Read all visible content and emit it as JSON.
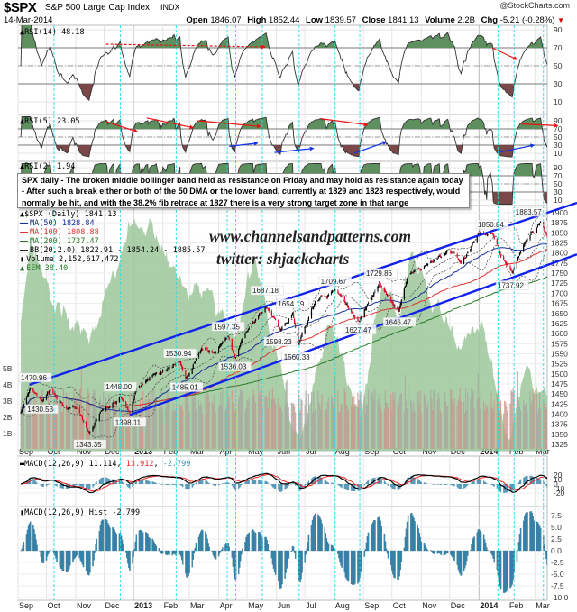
{
  "header": {
    "symbol": "$SPX",
    "name": "S&P 500 Large Cap Index",
    "exchange": "INDX",
    "date": "14-Mar-2014",
    "provider": "@StockCharts.com",
    "quote": {
      "open_label": "Open",
      "open": "1846.07",
      "high_label": "High",
      "high": "1852.44",
      "low_label": "Low",
      "low": "1839.57",
      "close_label": "Close",
      "close": "1841.13",
      "volume_label": "Volume",
      "volume": "2.2B",
      "chg_label": "Chg",
      "chg": "-5.21 (-0.28%)",
      "chg_icon": "down-triangle-icon"
    }
  },
  "annotation": {
    "lines": [
      "SPX daily - The broken middle bollinger band held as resistance on Friday and may hold as resistance again today",
      "- After such a break either or both of the 50 DMA or the lower band, currently at 1829 and 1823 respectively, would",
      "normally be hit, and with the 38.2% fib retrace at 1827 there is a very strong target zone in that range"
    ]
  },
  "branding": {
    "site": "www.channelsandpatterns.com",
    "twitter": "twitter: shjackcharts"
  },
  "colors": {
    "candle_up": "#000000",
    "candle_down": "#dd0022",
    "ma50": "#1a2e99",
    "ma100": "#dd3333",
    "ma200": "#2a7a2a",
    "bb": "#444444",
    "channel": "#1122ee",
    "eem_area": "#9cc79a",
    "volume_down": "#c9968c",
    "volume_up": "#a8a8a0",
    "macd": "#000000",
    "signal": "#ee2222",
    "hist": "#3a87ad",
    "rsi_overbought_fill": "#5e8f5e",
    "rsi_oversold_fill": "#7a4848",
    "highlight_vline": "#22ddee",
    "annotation_red": "#ee1111",
    "annotation_blue": "#1133ee"
  },
  "chart_data": {
    "type": "stock-chart",
    "x_axis": {
      "range": [
        "2012-09-04",
        "2014-03-14"
      ],
      "ticks": [
        {
          "date": "2012-09-01",
          "label": "Sep"
        },
        {
          "date": "2012-10-01",
          "label": "Oct"
        },
        {
          "date": "2012-11-01",
          "label": "Nov"
        },
        {
          "date": "2012-12-01",
          "label": "Dec"
        },
        {
          "date": "2013-01-01",
          "label": "2013",
          "bold": true
        },
        {
          "date": "2013-02-01",
          "label": "Feb"
        },
        {
          "date": "2013-03-01",
          "label": "Mar"
        },
        {
          "date": "2013-04-01",
          "label": "Apr"
        },
        {
          "date": "2013-05-01",
          "label": "May"
        },
        {
          "date": "2013-06-01",
          "label": "Jun"
        },
        {
          "date": "2013-07-01",
          "label": "Jul"
        },
        {
          "date": "2013-08-01",
          "label": "Aug"
        },
        {
          "date": "2013-09-01",
          "label": "Sep"
        },
        {
          "date": "2013-10-01",
          "label": "Oct"
        },
        {
          "date": "2013-11-01",
          "label": "Nov"
        },
        {
          "date": "2013-12-01",
          "label": "Dec"
        },
        {
          "date": "2014-01-01",
          "label": "2014",
          "bold": true
        },
        {
          "date": "2014-02-01",
          "label": "Feb"
        },
        {
          "date": "2014-03-01",
          "label": "Mar"
        }
      ],
      "highlight_dates": [
        "2012-10-09",
        "2012-12-18",
        "2013-02-15",
        "2013-04-10",
        "2013-04-19",
        "2013-05-17",
        "2013-06-25",
        "2013-08-02",
        "2013-08-28",
        "2014-01-21",
        "2014-02-07",
        "2014-03-10"
      ]
    },
    "rsi14": {
      "legend": "RSI(14) 48.18",
      "period": 14,
      "ticks": [
        90,
        70,
        50,
        30,
        10
      ],
      "levels": [
        70,
        30
      ],
      "divergence_arrows": [
        {
          "color": "red",
          "style": "dashed",
          "from": [
            "2012-12-03",
            74
          ],
          "to": [
            "2013-05-20",
            71
          ]
        },
        {
          "color": "red",
          "style": "solid",
          "from": [
            "2014-01-15",
            70
          ],
          "to": [
            "2014-02-10",
            57
          ]
        }
      ]
    },
    "rsi5": {
      "legend": "RSI(5) 23.05",
      "period": 5,
      "ticks": [
        90,
        70,
        50,
        30,
        10
      ],
      "levels": [
        70,
        30
      ],
      "divergence_arrows": [
        {
          "color": "red",
          "from": [
            "2012-12-03",
            88
          ],
          "to": [
            "2013-01-05",
            63
          ]
        },
        {
          "color": "red",
          "from": [
            "2013-01-15",
            97
          ],
          "to": [
            "2013-03-05",
            73
          ]
        },
        {
          "color": "red",
          "from": [
            "2013-03-10",
            90
          ],
          "to": [
            "2013-05-15",
            76
          ]
        },
        {
          "color": "red",
          "from": [
            "2013-07-18",
            95
          ],
          "to": [
            "2013-09-05",
            80
          ]
        },
        {
          "color": "red",
          "from": [
            "2014-02-15",
            82
          ],
          "to": [
            "2014-03-25",
            78
          ]
        },
        {
          "color": "blue",
          "from": [
            "2013-04-12",
            27
          ],
          "to": [
            "2013-05-12",
            35
          ]
        },
        {
          "color": "blue",
          "from": [
            "2013-05-30",
            12
          ],
          "to": [
            "2013-07-10",
            22
          ]
        },
        {
          "color": "blue",
          "from": [
            "2013-08-22",
            10
          ],
          "to": [
            "2013-09-25",
            38
          ]
        },
        {
          "color": "blue",
          "from": [
            "2014-01-22",
            12
          ],
          "to": [
            "2014-02-28",
            30
          ]
        }
      ]
    },
    "rsi2": {
      "legend": "RSI(2) 1.94",
      "period": 2,
      "ticks": [
        90,
        70,
        50,
        30,
        10
      ],
      "levels": [
        70,
        30
      ]
    },
    "price": {
      "legend": {
        "main": "$SPX (Daily) 1841.13",
        "ma50": "MA(50) 1828.84",
        "ma100": "MA(100) 1808.88",
        "ma200": "MA(200) 1737.47",
        "bb": "BB(20,2.0) 1822.91 - 1854.24 - 1885.57",
        "volume": "Volume 2,152,617,472",
        "eem": "EEM 38.40"
      },
      "y_ticks": [
        1900,
        1875,
        1850,
        1825,
        1800,
        1775,
        1750,
        1725,
        1700,
        1675,
        1650,
        1625,
        1600,
        1575,
        1550,
        1525,
        1500,
        1475,
        1450,
        1425,
        1400,
        1375,
        1350,
        1325
      ],
      "volume_ticks": [
        "5B",
        "4B",
        "3B",
        "2B",
        "1B"
      ],
      "close_path": [
        [
          "2012-09-04",
          1405
        ],
        [
          "2012-09-14",
          1466
        ],
        [
          "2012-09-26",
          1433
        ],
        [
          "2012-10-05",
          1461
        ],
        [
          "2012-10-23",
          1413
        ],
        [
          "2012-11-02",
          1414
        ],
        [
          "2012-11-15",
          1353
        ],
        [
          "2012-11-28",
          1409
        ],
        [
          "2012-12-07",
          1418
        ],
        [
          "2012-12-18",
          1446
        ],
        [
          "2012-12-28",
          1402
        ],
        [
          "2013-01-04",
          1466
        ],
        [
          "2013-01-25",
          1503
        ],
        [
          "2013-02-19",
          1530
        ],
        [
          "2013-02-25",
          1488
        ],
        [
          "2013-03-14",
          1563
        ],
        [
          "2013-03-26",
          1552
        ],
        [
          "2013-04-02",
          1570
        ],
        [
          "2013-04-11",
          1593
        ],
        [
          "2013-04-18",
          1541
        ],
        [
          "2013-05-03",
          1614
        ],
        [
          "2013-05-21",
          1669
        ],
        [
          "2013-06-05",
          1608
        ],
        [
          "2013-06-18",
          1651
        ],
        [
          "2013-06-24",
          1573
        ],
        [
          "2013-07-12",
          1680
        ],
        [
          "2013-08-02",
          1709
        ],
        [
          "2013-08-27",
          1630
        ],
        [
          "2013-09-18",
          1725
        ],
        [
          "2013-10-08",
          1656
        ],
        [
          "2013-10-18",
          1745
        ],
        [
          "2013-11-06",
          1770
        ],
        [
          "2013-11-29",
          1806
        ],
        [
          "2013-12-13",
          1775
        ],
        [
          "2013-12-31",
          1848
        ],
        [
          "2014-01-15",
          1848
        ],
        [
          "2014-01-24",
          1790
        ],
        [
          "2014-02-05",
          1751
        ],
        [
          "2014-02-19",
          1828
        ],
        [
          "2014-03-07",
          1878
        ],
        [
          "2014-03-14",
          1841.13
        ]
      ],
      "eem_path": [
        [
          "2012-09-04",
          41.2
        ],
        [
          "2012-09-14",
          44.0
        ],
        [
          "2012-10-05",
          42.3
        ],
        [
          "2012-10-23",
          41.5
        ],
        [
          "2012-11-15",
          40.5
        ],
        [
          "2012-12-03",
          42.5
        ],
        [
          "2013-01-03",
          45.2
        ],
        [
          "2013-01-25",
          44.5
        ],
        [
          "2013-02-25",
          42.3
        ],
        [
          "2013-03-14",
          42.5
        ],
        [
          "2013-04-18",
          40.7
        ],
        [
          "2013-05-08",
          43.5
        ],
        [
          "2013-06-24",
          36.6
        ],
        [
          "2013-07-23",
          40.8
        ],
        [
          "2013-08-05",
          40.5
        ],
        [
          "2013-08-28",
          37.6
        ],
        [
          "2013-09-18",
          42.3
        ],
        [
          "2013-10-08",
          41.5
        ],
        [
          "2013-10-22",
          43.8
        ],
        [
          "2013-11-06",
          42.5
        ],
        [
          "2013-12-13",
          40.4
        ],
        [
          "2014-01-03",
          41.2
        ],
        [
          "2014-02-03",
          37.0
        ],
        [
          "2014-02-20",
          39.5
        ],
        [
          "2014-03-14",
          38.4
        ]
      ],
      "swing_labels": [
        {
          "date": "2012-09-14",
          "value": 1470.96,
          "pos": "above"
        },
        {
          "date": "2012-09-26",
          "value": 1430.53,
          "pos": "below"
        },
        {
          "date": "2012-11-16",
          "value": 1343.35,
          "pos": "below"
        },
        {
          "date": "2012-12-18",
          "value": 1448.0,
          "pos": "above"
        },
        {
          "date": "2012-12-28",
          "value": 1398.11,
          "pos": "below"
        },
        {
          "date": "2013-02-19",
          "value": 1530.94,
          "pos": "above"
        },
        {
          "date": "2013-02-26",
          "value": 1485.01,
          "pos": "below"
        },
        {
          "date": "2013-04-11",
          "value": 1597.35,
          "pos": "above"
        },
        {
          "date": "2013-04-18",
          "value": 1536.03,
          "pos": "below"
        },
        {
          "date": "2013-05-22",
          "value": 1687.18,
          "pos": "above"
        },
        {
          "date": "2013-06-18",
          "value": 1654.19,
          "pos": "above"
        },
        {
          "date": "2013-06-05",
          "value": 1598.23,
          "pos": "below"
        },
        {
          "date": "2013-06-24",
          "value": 1560.33,
          "pos": "below"
        },
        {
          "date": "2013-08-02",
          "value": 1709.67,
          "pos": "above"
        },
        {
          "date": "2013-08-28",
          "value": 1627.47,
          "pos": "below"
        },
        {
          "date": "2013-09-19",
          "value": 1729.86,
          "pos": "above"
        },
        {
          "date": "2013-10-09",
          "value": 1646.47,
          "pos": "below"
        },
        {
          "date": "2014-01-15",
          "value": 1850.84,
          "pos": "above"
        },
        {
          "date": "2014-02-05",
          "value": 1737.92,
          "pos": "below"
        },
        {
          "date": "2014-03-07",
          "value": 1883.57,
          "pos": "above"
        }
      ],
      "channel_lines": [
        {
          "name": "upper",
          "from": [
            "2012-09-13",
            1473
          ],
          "to": [
            "2014-03-14",
            1900
          ]
        },
        {
          "name": "lower",
          "from": [
            "2012-12-28",
            1398
          ],
          "to": [
            "2014-03-14",
            1770
          ]
        }
      ]
    },
    "macd": {
      "legend_prefix": "MACD(12,26,9) 11.114",
      "legend_signal": "13.912",
      "legend_hist": "-2.799",
      "params": [
        12,
        26,
        9
      ],
      "ticks": [
        20,
        10,
        0,
        -10,
        -20
      ]
    },
    "macd_hist": {
      "legend": "MACD(12,26,9) Hist -2.799",
      "ticks": [
        "7.5",
        "5.0",
        "2.5",
        "0.0",
        "-2.5",
        "-5.0",
        "-7.5",
        "-10.0"
      ]
    }
  }
}
